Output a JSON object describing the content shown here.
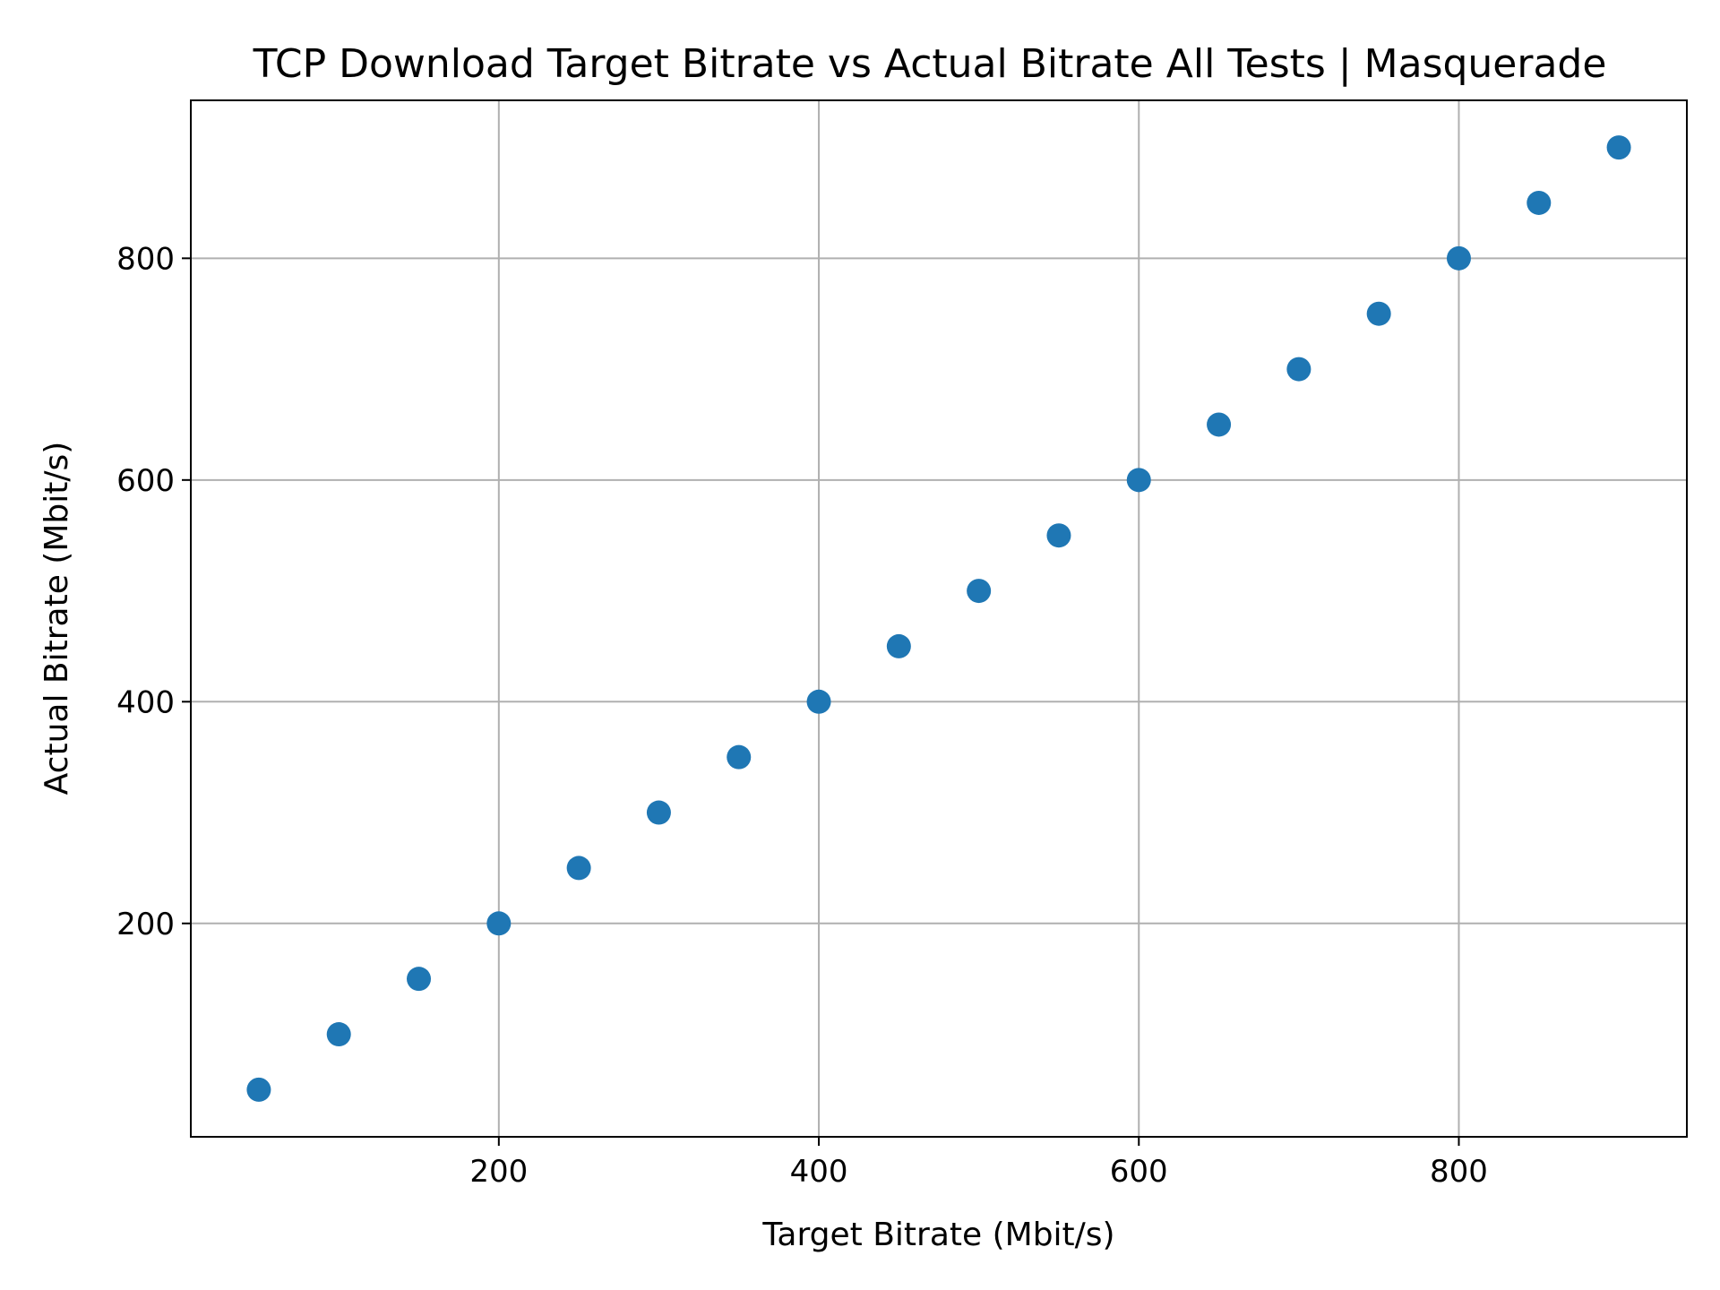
{
  "chart_data": {
    "type": "scatter",
    "title": "TCP Download Target Bitrate vs Actual Bitrate All Tests | Masquerade",
    "xlabel": "Target Bitrate (Mbit/s)",
    "ylabel": "Actual Bitrate (Mbit/s)",
    "xlim": [
      7.5,
      942.5
    ],
    "ylim": [
      7.5,
      942.5
    ],
    "xticks": [
      200,
      400,
      600,
      800
    ],
    "yticks": [
      200,
      400,
      600,
      800
    ],
    "grid": true,
    "color": "#1f77b4",
    "series": [
      {
        "x": [
          50,
          100,
          150,
          200,
          250,
          300,
          350,
          400,
          450,
          500,
          550,
          600,
          650,
          700,
          750,
          800,
          850,
          900
        ],
        "y": [
          50,
          100,
          150,
          200,
          250,
          300,
          350,
          400,
          450,
          500,
          550,
          600,
          650,
          700,
          750,
          800,
          850,
          900
        ]
      }
    ]
  }
}
